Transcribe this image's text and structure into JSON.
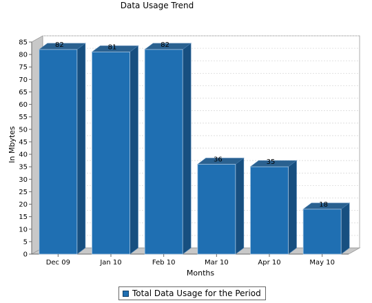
{
  "chart_data": {
    "type": "bar",
    "title": "Data Usage Trend",
    "xlabel": "Months",
    "ylabel": "In Mbytes",
    "categories": [
      "Dec 09",
      "Jan 10",
      "Feb 10",
      "Mar 10",
      "Apr 10",
      "May 10"
    ],
    "series": [
      {
        "name": "Total Data Usage for the Period",
        "values": [
          82,
          81,
          82,
          36,
          35,
          18
        ]
      }
    ],
    "ylim": [
      0,
      85
    ],
    "yticks": [
      0,
      5,
      10,
      15,
      20,
      25,
      30,
      35,
      40,
      45,
      50,
      55,
      60,
      65,
      70,
      75,
      80,
      85
    ],
    "grid": true,
    "legend_position": "bottom-center",
    "bar_color": "#1f6fb2",
    "three_d": true
  }
}
